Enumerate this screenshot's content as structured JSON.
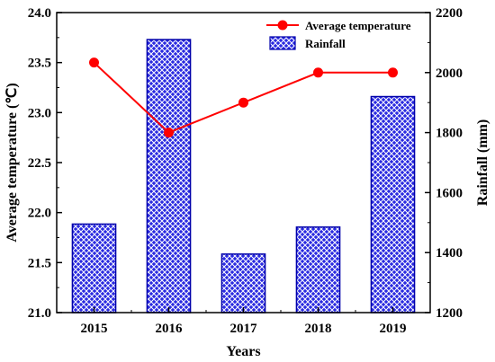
{
  "chart_data": {
    "type": "bar+line",
    "categories": [
      "2015",
      "2016",
      "2017",
      "2018",
      "2019"
    ],
    "series": [
      {
        "name": "Rainfall",
        "type": "bar",
        "axis": "right",
        "values": [
          1495,
          2110,
          1395,
          1485,
          1920
        ],
        "color": "#1f1fcc",
        "pattern": "crosshatch"
      },
      {
        "name": "Average temperature",
        "type": "line",
        "axis": "left",
        "values": [
          23.5,
          22.8,
          23.1,
          23.4,
          23.4
        ],
        "color": "#ff0000",
        "marker": "circle"
      }
    ],
    "xlabel": "Years",
    "ylabel_left": "Average temperature (℃)",
    "ylabel_right": "Rainfall (mm)",
    "ylim_left": [
      21.0,
      24.0
    ],
    "yticks_left": [
      "21.0",
      "21.5",
      "22.0",
      "22.5",
      "23.0",
      "23.5",
      "24.0"
    ],
    "ylim_right": [
      1200,
      2200
    ],
    "yticks_right": [
      "1200",
      "1400",
      "1600",
      "1800",
      "2000",
      "2200"
    ],
    "legend": {
      "position": "top-right",
      "entries": [
        "Average temperature",
        "Rainfall"
      ]
    },
    "grid": false
  }
}
